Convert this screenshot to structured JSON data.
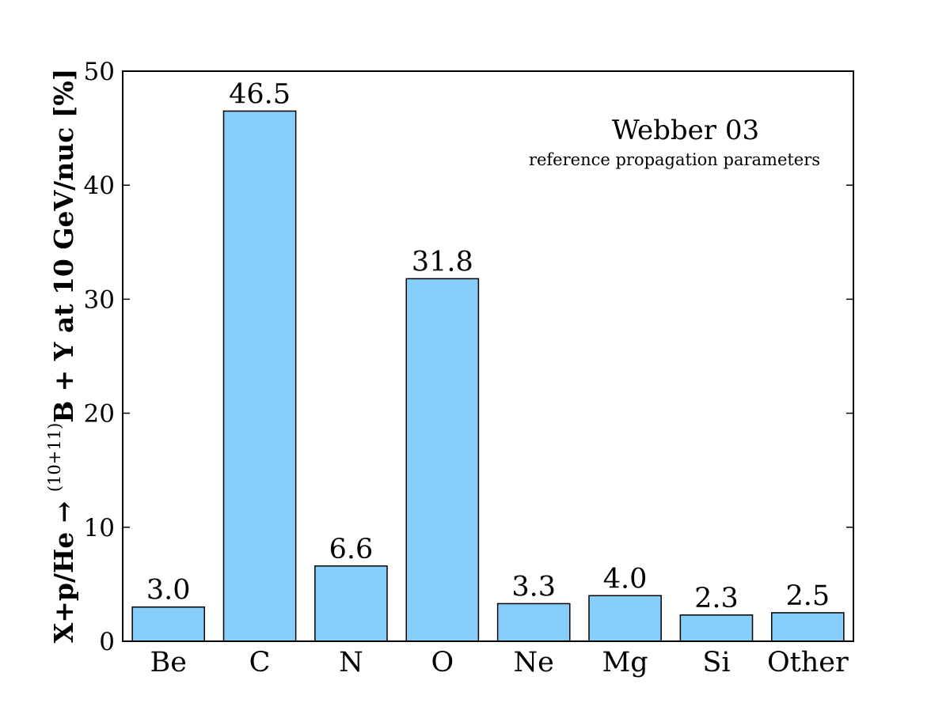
{
  "chart_data": {
    "type": "bar",
    "title": "",
    "categories": [
      "Be",
      "C",
      "N",
      "O",
      "Ne",
      "Mg",
      "Si",
      "Other"
    ],
    "values": [
      3.0,
      46.5,
      6.6,
      31.8,
      3.3,
      4.0,
      2.3,
      2.5
    ],
    "value_labels": [
      "3.0",
      "46.5",
      "6.6",
      "31.8",
      "3.3",
      "4.0",
      "2.3",
      "2.5"
    ],
    "ylabel_prefix": "X+p/He → ",
    "ylabel_sup": "(10+11)",
    "ylabel_suffix": "B + Y at 10 GeV/nuc [%]",
    "ylim": [
      0,
      50
    ],
    "yticks": [
      0,
      10,
      20,
      30,
      40,
      50
    ],
    "annotation_title": "Webber 03",
    "annotation_subtitle": "reference propagation parameters",
    "bar_color": "#87cefa",
    "grid": false
  }
}
